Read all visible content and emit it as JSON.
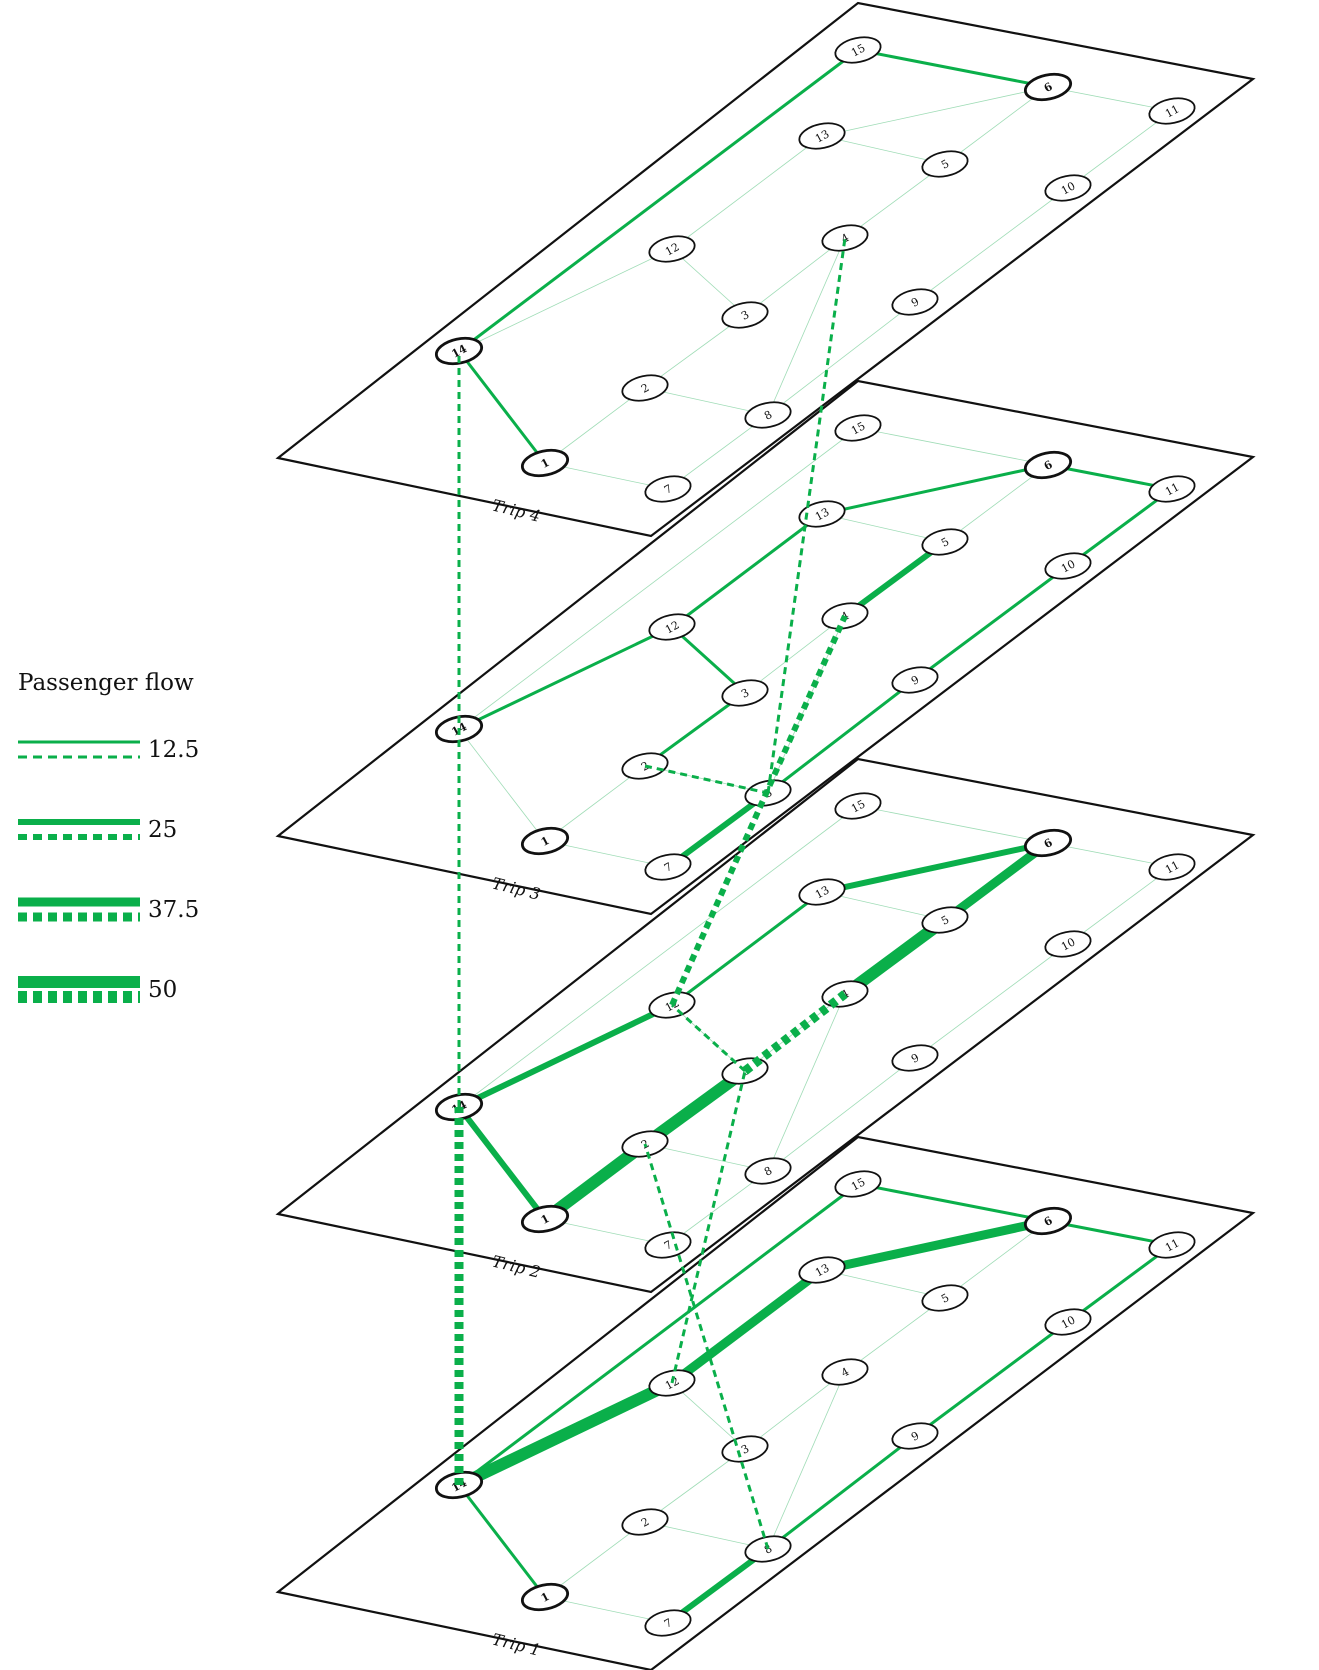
{
  "legend": {
    "title": "Passenger flow",
    "items": [
      {
        "label": "12.5",
        "value": 12.5
      },
      {
        "label": "25",
        "value": 25
      },
      {
        "label": "37.5",
        "value": 37.5
      },
      {
        "label": "50",
        "value": 50
      }
    ]
  },
  "colors": {
    "flow": "#0aaf4a",
    "outline": "#111111",
    "faint_link": "#9fdcb6"
  },
  "node_ids": [
    "1",
    "2",
    "3",
    "4",
    "5",
    "6",
    "7",
    "8",
    "9",
    "10",
    "11",
    "12",
    "13",
    "14",
    "15"
  ],
  "bold_nodes": [
    "1",
    "6",
    "14"
  ],
  "network_links": [
    [
      "15",
      "6"
    ],
    [
      "6",
      "11"
    ],
    [
      "13",
      "6"
    ],
    [
      "13",
      "5"
    ],
    [
      "15",
      "14"
    ],
    [
      "14",
      "12"
    ],
    [
      "12",
      "13"
    ],
    [
      "12",
      "3"
    ],
    [
      "3",
      "4"
    ],
    [
      "4",
      "5"
    ],
    [
      "14",
      "1"
    ],
    [
      "1",
      "2"
    ],
    [
      "2",
      "3"
    ],
    [
      "2",
      "8"
    ],
    [
      "8",
      "4"
    ],
    [
      "8",
      "9"
    ],
    [
      "9",
      "10"
    ],
    [
      "10",
      "11"
    ],
    [
      "1",
      "7"
    ],
    [
      "7",
      "8"
    ],
    [
      "5",
      "6"
    ]
  ],
  "trips": [
    {
      "label": "Trip 1",
      "flows": [
        {
          "from": "14",
          "to": "12",
          "flow": 50
        },
        {
          "from": "12",
          "to": "13",
          "flow": 37.5
        },
        {
          "from": "13",
          "to": "6",
          "flow": 37.5
        },
        {
          "from": "6",
          "to": "11",
          "flow": 12.5
        },
        {
          "from": "11",
          "to": "10",
          "flow": 12.5
        },
        {
          "from": "10",
          "to": "9",
          "flow": 12.5
        },
        {
          "from": "9",
          "to": "8",
          "flow": 12.5
        },
        {
          "from": "8",
          "to": "7",
          "flow": 25
        },
        {
          "from": "14",
          "to": "1",
          "flow": 12.5
        },
        {
          "from": "14",
          "to": "15",
          "flow": 12.5
        },
        {
          "from": "15",
          "to": "6",
          "flow": 12.5
        }
      ]
    },
    {
      "label": "Trip 2",
      "flows": [
        {
          "from": "14",
          "to": "1",
          "flow": 25
        },
        {
          "from": "1",
          "to": "2",
          "flow": 50
        },
        {
          "from": "2",
          "to": "3",
          "flow": 50
        },
        {
          "from": "4",
          "to": "5",
          "flow": 50
        },
        {
          "from": "5",
          "to": "6",
          "flow": 37.5
        },
        {
          "from": "14",
          "to": "12",
          "flow": 25
        },
        {
          "from": "12",
          "to": "13",
          "flow": 12.5
        },
        {
          "from": "13",
          "to": "6",
          "flow": 25
        }
      ]
    },
    {
      "label": "Trip 3",
      "flows": [
        {
          "from": "14",
          "to": "12",
          "flow": 12.5
        },
        {
          "from": "12",
          "to": "13",
          "flow": 12.5
        },
        {
          "from": "13",
          "to": "6",
          "flow": 12.5
        },
        {
          "from": "6",
          "to": "11",
          "flow": 12.5
        },
        {
          "from": "11",
          "to": "10",
          "flow": 12.5
        },
        {
          "from": "10",
          "to": "9",
          "flow": 12.5
        },
        {
          "from": "9",
          "to": "8",
          "flow": 12.5
        },
        {
          "from": "8",
          "to": "7",
          "flow": 25
        },
        {
          "from": "4",
          "to": "5",
          "flow": 25
        },
        {
          "from": "2",
          "to": "3",
          "flow": 12.5
        },
        {
          "from": "3",
          "to": "12",
          "flow": 12.5
        }
      ]
    },
    {
      "label": "Trip 4",
      "flows": [
        {
          "from": "14",
          "to": "15",
          "flow": 12.5
        },
        {
          "from": "15",
          "to": "6",
          "flow": 12.5
        },
        {
          "from": "14",
          "to": "1",
          "flow": 12.5
        }
      ]
    }
  ],
  "transfers": [
    {
      "from_trip": "Trip 1",
      "from_node": "14",
      "to_trip": "Trip 2",
      "to_node": "14",
      "flow": 37.5
    },
    {
      "from_trip": "Trip 2",
      "from_node": "14",
      "to_trip": "Trip 4",
      "to_node": "14",
      "flow": 12.5
    },
    {
      "from_trip": "Trip 1",
      "from_node": "12",
      "to_trip": "Trip 2",
      "to_node": "3",
      "flow": 12.5
    },
    {
      "from_trip": "Trip 1",
      "from_node": "8",
      "to_trip": "Trip 2",
      "to_node": "2",
      "flow": 12.5
    },
    {
      "from_trip": "Trip 2",
      "from_node": "3",
      "to_trip": "Trip 2",
      "to_node": "4",
      "flow": 37.5
    },
    {
      "from_trip": "Trip 2",
      "from_node": "12",
      "to_trip": "Trip 3",
      "to_node": "4",
      "flow": 25
    },
    {
      "from_trip": "Trip 2",
      "from_node": "3",
      "to_trip": "Trip 2",
      "to_node": "12",
      "flow": 12.5
    },
    {
      "from_trip": "Trip 3",
      "from_node": "2",
      "to_trip": "Trip 3",
      "to_node": "8",
      "flow": 12.5
    },
    {
      "from_trip": "Trip 3",
      "from_node": "8",
      "to_trip": "Trip 4",
      "to_node": "4",
      "flow": 12.5
    }
  ]
}
